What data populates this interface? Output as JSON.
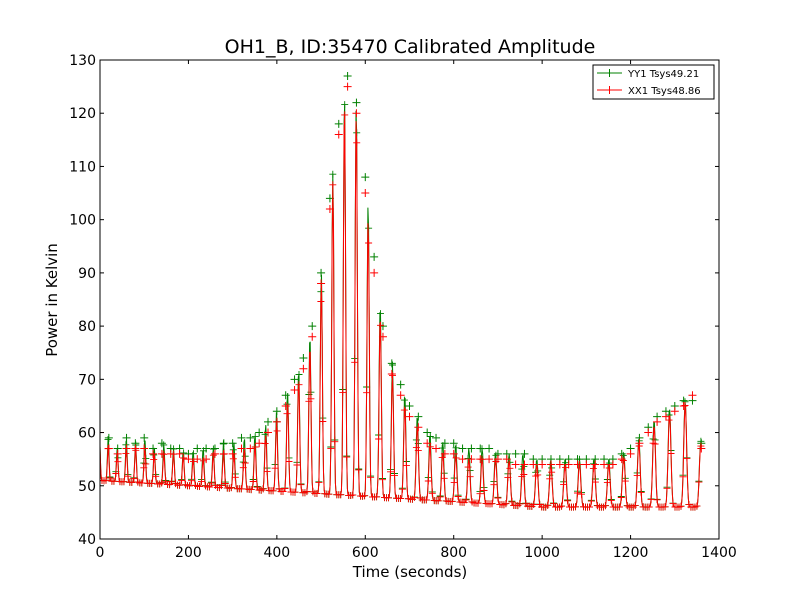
{
  "chart_data": {
    "type": "line",
    "title": "OH1_B, ID:35470 Calibrated Amplitude",
    "xlabel": "Time (seconds)",
    "ylabel": "Power in Kelvin",
    "xlim": [
      0,
      1400
    ],
    "ylim": [
      40,
      130
    ],
    "xticks": [
      "0",
      "200",
      "400",
      "600",
      "800",
      "1000",
      "1200",
      "1400"
    ],
    "yticks": [
      "40",
      "50",
      "60",
      "70",
      "80",
      "90",
      "100",
      "110",
      "120",
      "130"
    ],
    "grid": false,
    "legend_position": "top-right",
    "marker": "+",
    "series": [
      {
        "name": "YY1 Tsys49.21",
        "color": "#008000",
        "x": [
          0,
          20,
          40,
          60,
          80,
          100,
          120,
          140,
          160,
          180,
          200,
          220,
          240,
          260,
          280,
          300,
          320,
          340,
          360,
          380,
          400,
          420,
          440,
          460,
          480,
          500,
          520,
          540,
          560,
          580,
          600,
          620,
          640,
          660,
          680,
          700,
          720,
          740,
          760,
          780,
          800,
          820,
          840,
          860,
          880,
          900,
          920,
          940,
          960,
          980,
          1000,
          1020,
          1040,
          1060,
          1080,
          1100,
          1120,
          1140,
          1160,
          1180,
          1200,
          1220,
          1240,
          1260,
          1280,
          1300,
          1320,
          1340,
          1360
        ],
        "y": [
          60,
          59,
          57,
          59,
          58,
          59,
          57,
          58,
          57,
          57,
          56,
          57,
          57,
          57,
          58,
          58,
          59,
          59,
          60,
          62,
          64,
          67,
          70,
          74,
          80,
          90,
          104,
          118,
          127,
          122,
          108,
          93,
          80,
          73,
          69,
          65,
          63,
          60,
          59,
          58,
          58,
          57,
          57,
          57,
          57,
          56,
          56,
          56,
          56,
          55,
          55,
          55,
          55,
          55,
          55,
          55,
          55,
          55,
          55,
          56,
          57,
          59,
          61,
          63,
          64,
          65,
          66,
          66,
          58
        ]
      },
      {
        "name": "XX1 Tsys48.86",
        "color": "#ff0000",
        "x": [
          0,
          20,
          40,
          60,
          80,
          100,
          120,
          140,
          160,
          180,
          200,
          220,
          240,
          260,
          280,
          300,
          320,
          340,
          360,
          380,
          400,
          420,
          440,
          460,
          480,
          500,
          520,
          540,
          560,
          580,
          600,
          620,
          640,
          660,
          680,
          700,
          720,
          740,
          760,
          780,
          800,
          820,
          840,
          860,
          880,
          900,
          920,
          940,
          960,
          980,
          1000,
          1020,
          1040,
          1060,
          1080,
          1100,
          1120,
          1140,
          1160,
          1180,
          1200,
          1220,
          1240,
          1260,
          1280,
          1300,
          1320,
          1340,
          1360
        ],
        "y": [
          60,
          57,
          56,
          57,
          57,
          57,
          56,
          56,
          56,
          56,
          55,
          55,
          55,
          56,
          56,
          56,
          57,
          57,
          58,
          60,
          62,
          65,
          68,
          72,
          78,
          88,
          102,
          116,
          125,
          120,
          105,
          90,
          78,
          71,
          67,
          63,
          61,
          58,
          57,
          56,
          56,
          55,
          55,
          55,
          55,
          55,
          55,
          54,
          54,
          54,
          54,
          54,
          54,
          54,
          54,
          54,
          54,
          54,
          54,
          55,
          56,
          58,
          60,
          62,
          63,
          64,
          65,
          67,
          57
        ]
      }
    ]
  }
}
